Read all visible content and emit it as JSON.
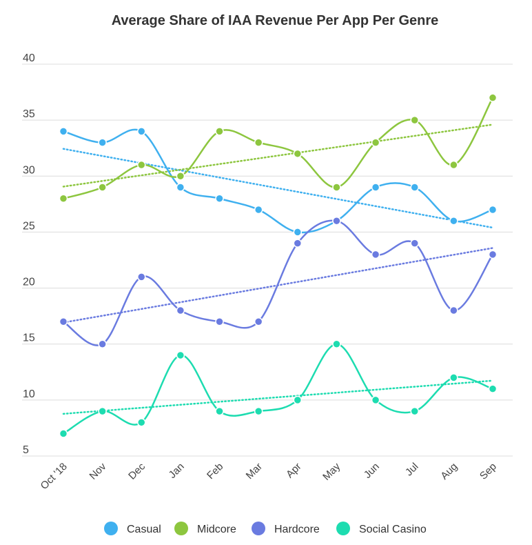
{
  "chart_data": {
    "type": "line",
    "title": "Average Share of IAA Revenue Per App Per Genre",
    "xlabel": "",
    "ylabel": "",
    "categories": [
      "Oct '18",
      "Nov",
      "Dec",
      "Jan",
      "Feb",
      "Mar",
      "Apr",
      "May",
      "Jun",
      "Jul",
      "Aug",
      "Sep"
    ],
    "ylim": [
      5,
      40
    ],
    "yticks": [
      5,
      10,
      15,
      20,
      25,
      30,
      35,
      40
    ],
    "grid": true,
    "legend_position": "bottom",
    "trendlines": true,
    "series": [
      {
        "name": "Casual",
        "color": "#3fb0ef",
        "values": [
          34,
          33,
          34,
          29,
          28,
          27,
          25,
          26,
          29,
          29,
          26,
          27
        ]
      },
      {
        "name": "Midcore",
        "color": "#8dc63f",
        "values": [
          28,
          29,
          31,
          30,
          34,
          33,
          32,
          29,
          33,
          35,
          31,
          37
        ]
      },
      {
        "name": "Hardcore",
        "color": "#6a7be0",
        "values": [
          17,
          15,
          21,
          18,
          17,
          17,
          24,
          26,
          23,
          24,
          18,
          23
        ]
      },
      {
        "name": "Social Casino",
        "color": "#1ddcb0",
        "values": [
          7,
          9,
          8,
          14,
          9,
          9,
          10,
          15,
          10,
          9,
          12,
          11
        ]
      }
    ]
  }
}
